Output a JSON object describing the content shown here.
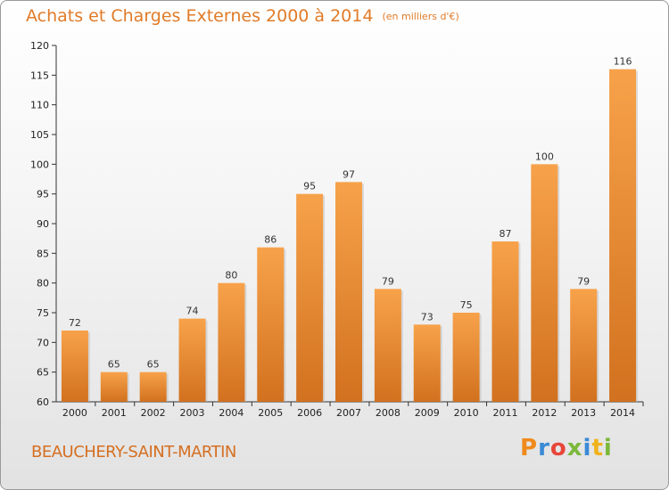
{
  "header": {
    "title": "Achats et Charges Externes 2000 à 2014",
    "unit": "(en milliers d'€)"
  },
  "footer": {
    "location": "BEAUCHERY-SAINT-MARTIN",
    "logo_text": "Proxiti"
  },
  "colors": {
    "bar_light": "#f7a24a",
    "bar_dark": "#d2711f",
    "title": "#e07b28",
    "location": "#d56f21"
  },
  "chart_data": {
    "type": "bar",
    "title": "Achats et Charges Externes 2000 à 2014",
    "subtitle": "(en milliers d'€)",
    "xlabel": "",
    "ylabel": "",
    "categories": [
      "2000",
      "2001",
      "2002",
      "2003",
      "2004",
      "2005",
      "2006",
      "2007",
      "2008",
      "2009",
      "2010",
      "2011",
      "2012",
      "2013",
      "2014"
    ],
    "values": [
      72,
      65,
      65,
      74,
      80,
      86,
      95,
      97,
      79,
      73,
      75,
      87,
      100,
      79,
      116
    ],
    "ylim": [
      60,
      120
    ],
    "yticks": [
      60,
      65,
      70,
      75,
      80,
      85,
      90,
      95,
      100,
      105,
      110,
      115,
      120
    ],
    "grid": false,
    "legend": "none"
  }
}
